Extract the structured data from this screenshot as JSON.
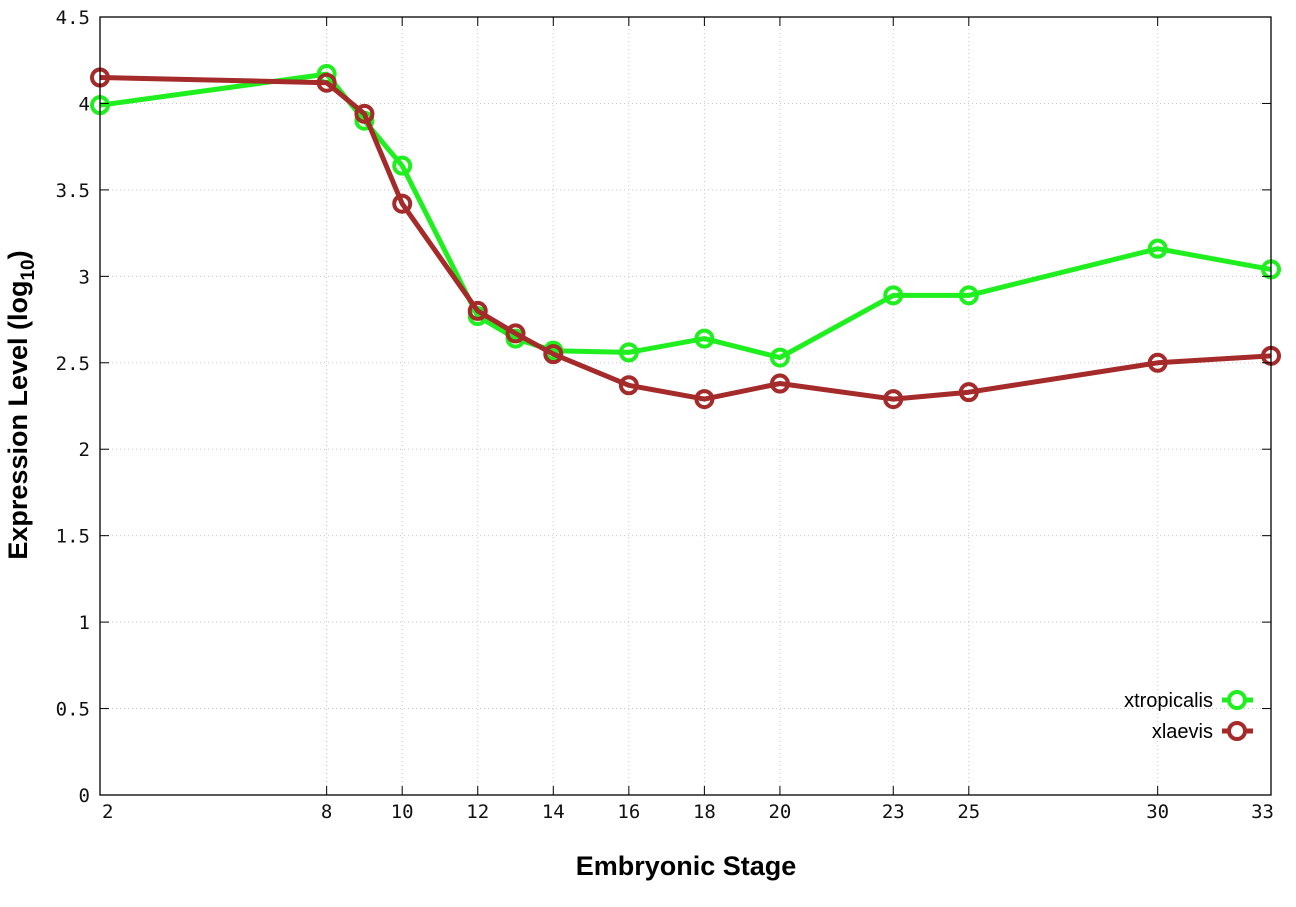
{
  "chart_data": {
    "type": "line",
    "title": "",
    "xlabel": "Embryonic Stage",
    "ylabel": "Expression Level (log",
    "ylabel_sub": "10",
    "ylabel_close": ")",
    "xlim": [
      2,
      33
    ],
    "ylim": [
      0,
      4.5
    ],
    "x_ticks": [
      2,
      8,
      10,
      12,
      14,
      16,
      18,
      20,
      23,
      25,
      30,
      33
    ],
    "x_tick_labels": [
      "2",
      "8",
      "10",
      "12",
      "14",
      "16",
      "18",
      "20",
      "23",
      "25",
      "30",
      "33"
    ],
    "y_ticks": [
      0,
      0.5,
      1,
      1.5,
      2,
      2.5,
      3,
      3.5,
      4,
      4.5
    ],
    "y_tick_labels": [
      "0",
      "0.5",
      "1",
      "1.5",
      "2",
      "2.5",
      "3",
      "3.5",
      "4",
      "4.5"
    ],
    "grid": true,
    "legend_position": "bottom-right",
    "x": [
      2,
      8,
      9,
      10,
      12,
      13,
      14,
      16,
      18,
      20,
      23,
      25,
      30,
      33
    ],
    "series": [
      {
        "name": "xtropicalis",
        "color": "#1fef1f",
        "values": [
          3.99,
          4.17,
          3.9,
          3.64,
          2.77,
          2.64,
          2.57,
          2.56,
          2.64,
          2.53,
          2.89,
          2.89,
          3.16,
          3.04
        ]
      },
      {
        "name": "xlaevis",
        "color": "#a52a2a",
        "values": [
          4.15,
          4.12,
          3.94,
          3.42,
          2.8,
          2.67,
          2.55,
          2.37,
          2.29,
          2.38,
          2.29,
          2.33,
          2.5,
          2.54
        ]
      }
    ]
  }
}
